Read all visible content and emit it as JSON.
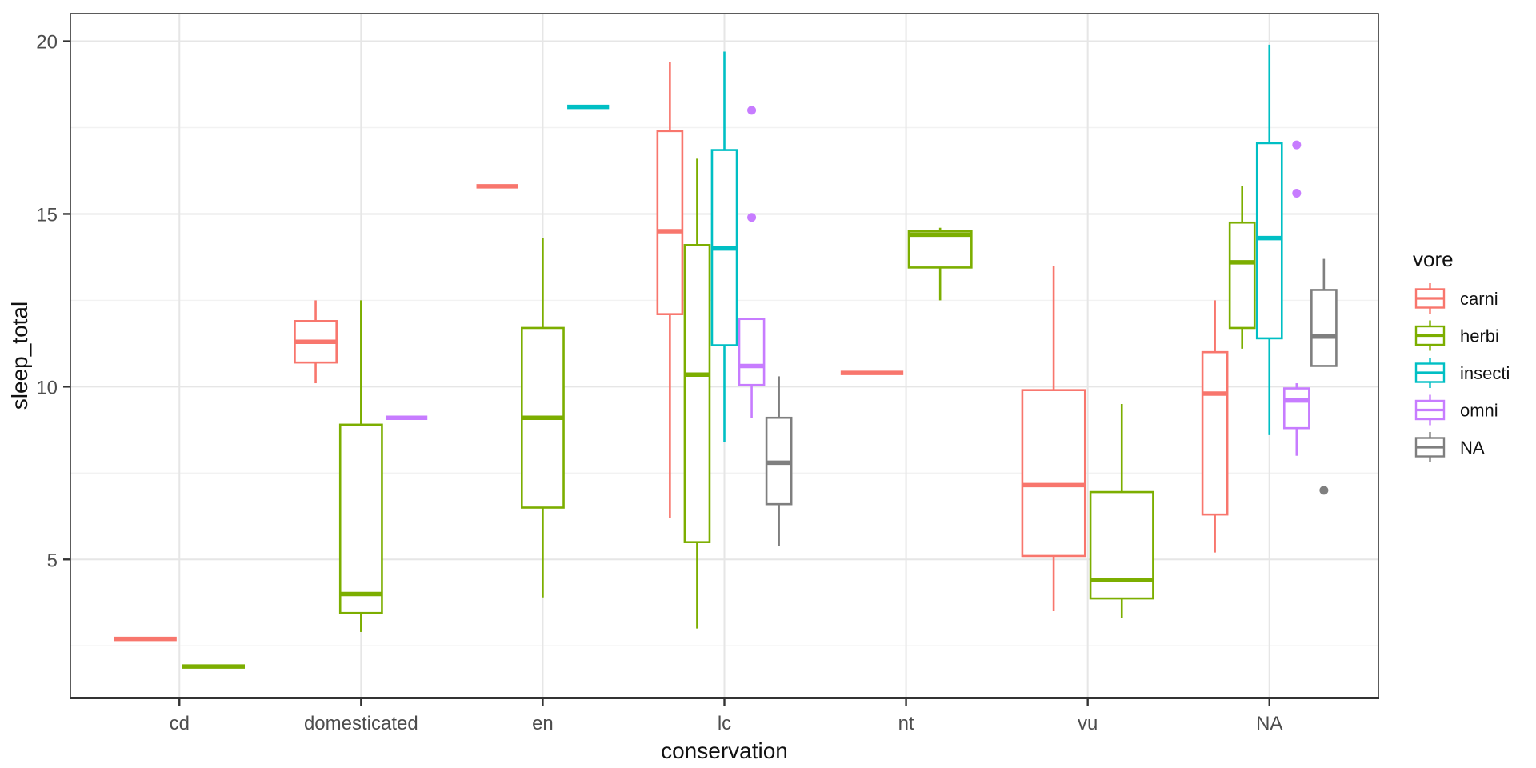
{
  "axes": {
    "x": {
      "title": "conservation",
      "categories": [
        "cd",
        "domesticated",
        "en",
        "lc",
        "nt",
        "vu",
        "NA"
      ]
    },
    "y": {
      "title": "sleep_total",
      "major_ticks": [
        5,
        10,
        15,
        20
      ],
      "minor_gridlines": [
        2.5,
        7.5,
        12.5,
        17.5
      ],
      "domain": [
        1.0,
        20.8
      ]
    }
  },
  "legend": {
    "title": "vore",
    "entries": [
      {
        "label": "carni",
        "color": "#F8766D"
      },
      {
        "label": "herbi",
        "color": "#7CAE00"
      },
      {
        "label": "insecti",
        "color": "#00BFC4"
      },
      {
        "label": "omni",
        "color": "#C77CFF"
      },
      {
        "label": "NA",
        "color": "#7F7F7F"
      }
    ]
  },
  "style_colors": {
    "panel_border": "#333333",
    "major_gridline": "#E6E6E6",
    "minor_gridline": "#F2F2F2",
    "tick_mark": "#333333",
    "box_fill": "#FFFFFF"
  },
  "chart_data": {
    "type": "boxplot",
    "title": "",
    "xlabel": "conservation",
    "ylabel": "sleep_total",
    "ylim": [
      1.0,
      20.8
    ],
    "legend_position": "right",
    "grid": true,
    "groups": [
      {
        "category": "cd",
        "boxes": [
          {
            "vore": "carni",
            "min": 2.7,
            "q1": 2.7,
            "median": 2.7,
            "q3": 2.7,
            "max": 2.7,
            "outliers": []
          },
          {
            "vore": "herbi",
            "min": 1.9,
            "q1": 1.9,
            "median": 1.9,
            "q3": 1.9,
            "max": 1.9,
            "outliers": []
          }
        ]
      },
      {
        "category": "domesticated",
        "boxes": [
          {
            "vore": "carni",
            "min": 10.1,
            "q1": 10.7,
            "median": 11.3,
            "q3": 11.9,
            "max": 12.5,
            "outliers": []
          },
          {
            "vore": "herbi",
            "min": 2.9,
            "q1": 3.45,
            "median": 4.0,
            "q3": 8.9,
            "max": 12.5,
            "outliers": []
          },
          {
            "vore": "omni",
            "min": 9.1,
            "q1": 9.1,
            "median": 9.1,
            "q3": 9.1,
            "max": 9.1,
            "outliers": []
          }
        ]
      },
      {
        "category": "en",
        "boxes": [
          {
            "vore": "carni",
            "min": 15.8,
            "q1": 15.8,
            "median": 15.8,
            "q3": 15.8,
            "max": 15.8,
            "outliers": []
          },
          {
            "vore": "herbi",
            "min": 3.9,
            "q1": 6.5,
            "median": 9.1,
            "q3": 11.7,
            "max": 14.3,
            "outliers": []
          },
          {
            "vore": "insecti",
            "min": 18.1,
            "q1": 18.1,
            "median": 18.1,
            "q3": 18.1,
            "max": 18.1,
            "outliers": []
          }
        ]
      },
      {
        "category": "lc",
        "boxes": [
          {
            "vore": "carni",
            "min": 6.2,
            "q1": 12.1,
            "median": 14.5,
            "q3": 17.4,
            "max": 19.4,
            "outliers": []
          },
          {
            "vore": "herbi",
            "min": 3.0,
            "q1": 5.5,
            "median": 10.35,
            "q3": 14.1,
            "max": 16.6,
            "outliers": []
          },
          {
            "vore": "insecti",
            "min": 8.4,
            "q1": 11.2,
            "median": 14.0,
            "q3": 16.85,
            "max": 19.7,
            "outliers": []
          },
          {
            "vore": "omni",
            "min": 9.1,
            "q1": 10.05,
            "median": 10.6,
            "q3": 11.96,
            "max": 11.96,
            "outliers": [
              14.9,
              18.0
            ]
          },
          {
            "vore": "NA",
            "min": 5.4,
            "q1": 6.6,
            "median": 7.8,
            "q3": 9.1,
            "max": 10.3,
            "outliers": []
          }
        ]
      },
      {
        "category": "nt",
        "boxes": [
          {
            "vore": "carni",
            "min": 10.4,
            "q1": 10.4,
            "median": 10.4,
            "q3": 10.4,
            "max": 10.4,
            "outliers": []
          },
          {
            "vore": "herbi",
            "min": 12.5,
            "q1": 13.45,
            "median": 14.4,
            "q3": 14.5,
            "max": 14.6,
            "outliers": []
          }
        ]
      },
      {
        "category": "vu",
        "boxes": [
          {
            "vore": "carni",
            "min": 3.5,
            "q1": 5.1,
            "median": 7.15,
            "q3": 9.9,
            "max": 13.5,
            "outliers": []
          },
          {
            "vore": "herbi",
            "min": 3.3,
            "q1": 3.87,
            "median": 4.4,
            "q3": 6.95,
            "max": 9.5,
            "outliers": []
          }
        ]
      },
      {
        "category": "NA",
        "boxes": [
          {
            "vore": "carni",
            "min": 5.2,
            "q1": 6.3,
            "median": 9.8,
            "q3": 11.0,
            "max": 12.5,
            "outliers": []
          },
          {
            "vore": "herbi",
            "min": 11.1,
            "q1": 11.7,
            "median": 13.6,
            "q3": 14.75,
            "max": 15.8,
            "outliers": []
          },
          {
            "vore": "insecti",
            "min": 8.6,
            "q1": 11.4,
            "median": 14.3,
            "q3": 17.05,
            "max": 19.9,
            "outliers": []
          },
          {
            "vore": "omni",
            "min": 8.0,
            "q1": 8.8,
            "median": 9.6,
            "q3": 9.95,
            "max": 10.1,
            "outliers": [
              15.6,
              17.0
            ]
          },
          {
            "vore": "NA",
            "min": 10.6,
            "q1": 10.6,
            "median": 11.45,
            "q3": 12.8,
            "max": 13.7,
            "outliers": [
              7.0
            ]
          }
        ]
      }
    ]
  }
}
